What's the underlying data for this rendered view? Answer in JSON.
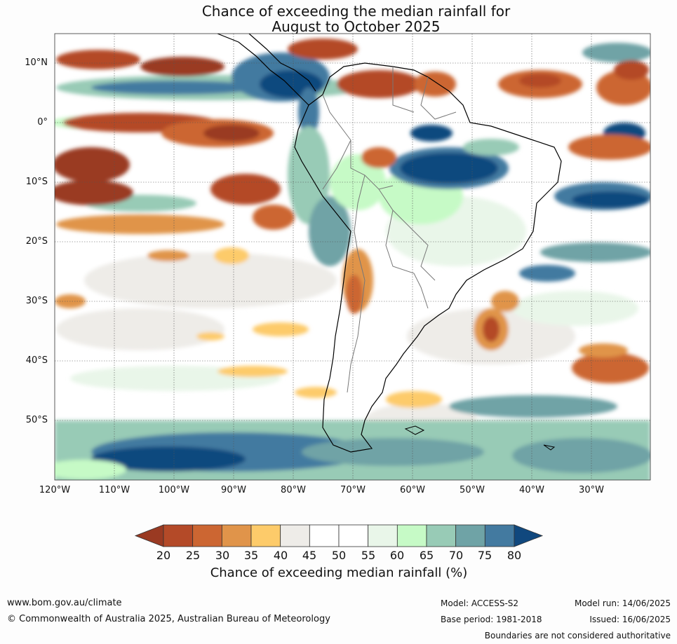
{
  "title": {
    "line1": "Chance of exceeding the median rainfall for",
    "line2": "August to October 2025"
  },
  "map": {
    "lat_labels": [
      "10°N",
      "0°",
      "10°S",
      "20°S",
      "30°S",
      "40°S",
      "50°S"
    ],
    "lon_labels": [
      "120°W",
      "110°W",
      "100°W",
      "90°W",
      "80°W",
      "70°W",
      "60°W",
      "50°W",
      "40°W",
      "30°W"
    ]
  },
  "colorbar": {
    "ticks": [
      "20",
      "25",
      "30",
      "35",
      "40",
      "45",
      "50",
      "55",
      "60",
      "65",
      "70",
      "75",
      "80"
    ],
    "colors": [
      "#9a3a22",
      "#b44a28",
      "#cc6632",
      "#e0944a",
      "#fdcb6a",
      "#eeece8",
      "#ffffff",
      "#ffffff",
      "#e9f6e9",
      "#c6fac6",
      "#98cbb6",
      "#6fa3a6",
      "#437aa0",
      "#10487e"
    ],
    "label": "Chance of exceeding median rainfall (%)"
  },
  "footer": {
    "website": "www.bom.gov.au/climate",
    "copyright": "© Commonwealth of Australia 2025, Australian Bureau of Meteorology",
    "model": "Model: ACCESS-S2",
    "base_period": "Base period: 1981-2018",
    "model_run": "Model run: 14/06/2025",
    "issued": "Issued: 16/06/2025",
    "disclaimer": "Boundaries are not considered authoritative"
  }
}
